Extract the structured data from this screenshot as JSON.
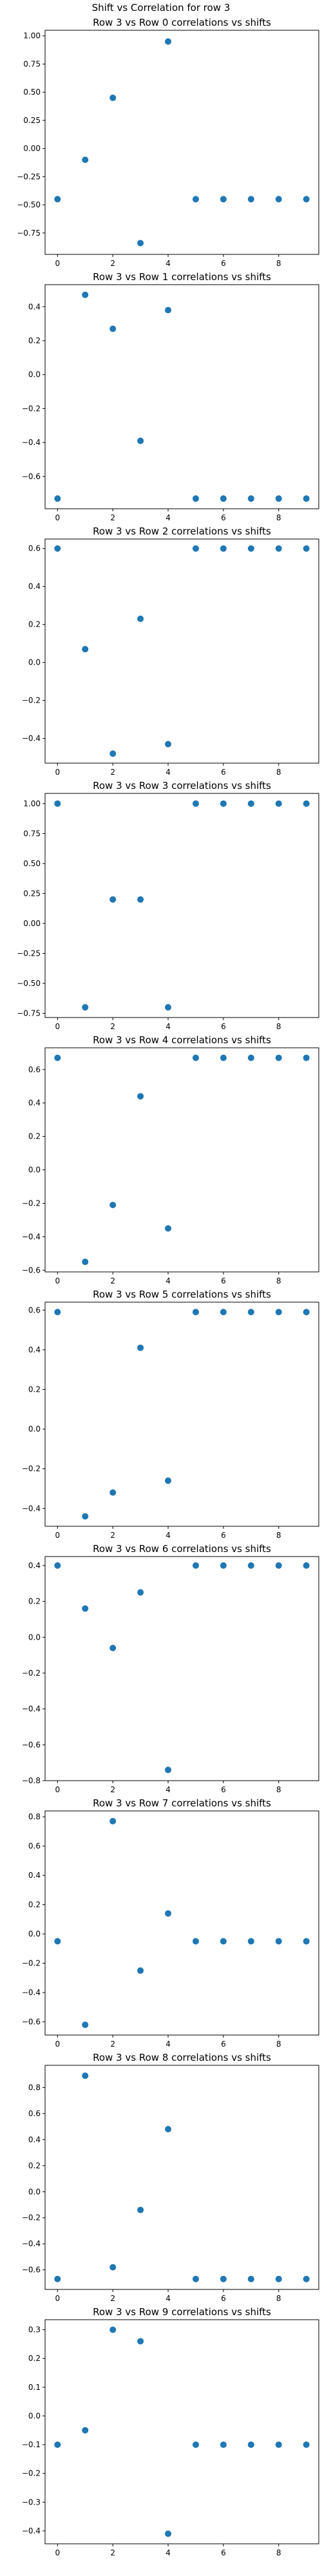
{
  "figure": {
    "suptitle": "Shift vs Correlation for row 3"
  },
  "colors": {
    "marker": "#1f77b4",
    "axis": "#000000",
    "text": "#000000"
  },
  "chart_data": [
    {
      "type": "scatter",
      "title": "Row 3 vs Row 0 correlations vs shifts",
      "x": [
        0,
        1,
        2,
        3,
        4,
        5,
        6,
        7,
        8,
        9
      ],
      "y": [
        -0.45,
        -0.1,
        0.45,
        -0.84,
        0.95,
        -0.45,
        -0.45,
        -0.45,
        -0.45,
        -0.45
      ],
      "xlim": [
        -0.45,
        9.45
      ],
      "ylim": [
        -0.94,
        1.05
      ],
      "xticks": [
        0,
        2,
        4,
        6,
        8
      ],
      "yticks": [
        -0.75,
        -0.5,
        -0.25,
        0.0,
        0.25,
        0.5,
        0.75,
        1.0
      ],
      "yticklabels": [
        "−0.75",
        "−0.50",
        "−0.25",
        "0.00",
        "0.25",
        "0.50",
        "0.75",
        "1.00"
      ]
    },
    {
      "type": "scatter",
      "title": "Row 3 vs Row 1 correlations vs shifts",
      "x": [
        0,
        1,
        2,
        3,
        4,
        5,
        6,
        7,
        8,
        9
      ],
      "y": [
        -0.73,
        0.47,
        0.27,
        -0.39,
        0.38,
        -0.73,
        -0.73,
        -0.73,
        -0.73,
        -0.73
      ],
      "xlim": [
        -0.45,
        9.45
      ],
      "ylim": [
        -0.79,
        0.53
      ],
      "xticks": [
        0,
        2,
        4,
        6,
        8
      ],
      "yticks": [
        -0.6,
        -0.4,
        -0.2,
        0.0,
        0.2,
        0.4
      ],
      "yticklabels": [
        "−0.6",
        "−0.4",
        "−0.2",
        "0.0",
        "0.2",
        "0.4"
      ]
    },
    {
      "type": "scatter",
      "title": "Row 3 vs Row 2 correlations vs shifts",
      "x": [
        0,
        1,
        2,
        3,
        4,
        5,
        6,
        7,
        8,
        9
      ],
      "y": [
        0.6,
        0.07,
        -0.48,
        0.23,
        -0.43,
        0.6,
        0.6,
        0.6,
        0.6,
        0.6
      ],
      "xlim": [
        -0.45,
        9.45
      ],
      "ylim": [
        -0.53,
        0.65
      ],
      "xticks": [
        0,
        2,
        4,
        6,
        8
      ],
      "yticks": [
        -0.4,
        -0.2,
        0.0,
        0.2,
        0.4,
        0.6
      ],
      "yticklabels": [
        "−0.4",
        "−0.2",
        "0.0",
        "0.2",
        "0.4",
        "0.6"
      ]
    },
    {
      "type": "scatter",
      "title": "Row 3 vs Row 3 correlations vs shifts",
      "x": [
        0,
        1,
        2,
        3,
        4,
        5,
        6,
        7,
        8,
        9
      ],
      "y": [
        1.0,
        -0.7,
        0.2,
        0.2,
        -0.7,
        1.0,
        1.0,
        1.0,
        1.0,
        1.0
      ],
      "xlim": [
        -0.45,
        9.45
      ],
      "ylim": [
        -0.785,
        1.085
      ],
      "xticks": [
        0,
        2,
        4,
        6,
        8
      ],
      "yticks": [
        -0.75,
        -0.5,
        -0.25,
        0.0,
        0.25,
        0.5,
        0.75,
        1.0
      ],
      "yticklabels": [
        "−0.75",
        "−0.50",
        "−0.25",
        "0.00",
        "0.25",
        "0.50",
        "0.75",
        "1.00"
      ]
    },
    {
      "type": "scatter",
      "title": "Row 3 vs Row 4 correlations vs shifts",
      "x": [
        0,
        1,
        2,
        3,
        4,
        5,
        6,
        7,
        8,
        9
      ],
      "y": [
        0.67,
        -0.55,
        -0.21,
        0.44,
        -0.35,
        0.67,
        0.67,
        0.67,
        0.67,
        0.67
      ],
      "xlim": [
        -0.45,
        9.45
      ],
      "ylim": [
        -0.61,
        0.73
      ],
      "xticks": [
        0,
        2,
        4,
        6,
        8
      ],
      "yticks": [
        -0.6,
        -0.4,
        -0.2,
        0.0,
        0.2,
        0.4,
        0.6
      ],
      "yticklabels": [
        "−0.6",
        "−0.4",
        "−0.2",
        "0.0",
        "0.2",
        "0.4",
        "0.6"
      ]
    },
    {
      "type": "scatter",
      "title": "Row 3 vs Row 5 correlations vs shifts",
      "x": [
        0,
        1,
        2,
        3,
        4,
        5,
        6,
        7,
        8,
        9
      ],
      "y": [
        0.59,
        -0.44,
        -0.32,
        0.41,
        -0.26,
        0.59,
        0.59,
        0.59,
        0.59,
        0.59
      ],
      "xlim": [
        -0.45,
        9.45
      ],
      "ylim": [
        -0.49,
        0.64
      ],
      "xticks": [
        0,
        2,
        4,
        6,
        8
      ],
      "yticks": [
        -0.4,
        -0.2,
        0.0,
        0.2,
        0.4,
        0.6
      ],
      "yticklabels": [
        "−0.4",
        "−0.2",
        "0.0",
        "0.2",
        "0.4",
        "0.6"
      ]
    },
    {
      "type": "scatter",
      "title": "Row 3 vs Row 6 correlations vs shifts",
      "x": [
        0,
        1,
        2,
        3,
        4,
        5,
        6,
        7,
        8,
        9
      ],
      "y": [
        0.4,
        0.16,
        -0.06,
        0.25,
        -0.74,
        0.4,
        0.4,
        0.4,
        0.4,
        0.4
      ],
      "xlim": [
        -0.45,
        9.45
      ],
      "ylim": [
        -0.8,
        0.45
      ],
      "xticks": [
        0,
        2,
        4,
        6,
        8
      ],
      "yticks": [
        -0.8,
        -0.6,
        -0.4,
        -0.2,
        0.0,
        0.2,
        0.4
      ],
      "yticklabels": [
        "−0.8",
        "−0.6",
        "−0.4",
        "−0.2",
        "0.0",
        "0.2",
        "0.4"
      ]
    },
    {
      "type": "scatter",
      "title": "Row 3 vs Row 7 correlations vs shifts",
      "x": [
        0,
        1,
        2,
        3,
        4,
        5,
        6,
        7,
        8,
        9
      ],
      "y": [
        -0.05,
        -0.62,
        0.77,
        -0.25,
        0.14,
        -0.05,
        -0.05,
        -0.05,
        -0.05,
        -0.05
      ],
      "xlim": [
        -0.45,
        9.45
      ],
      "ylim": [
        -0.69,
        0.84
      ],
      "xticks": [
        0,
        2,
        4,
        6,
        8
      ],
      "yticks": [
        -0.6,
        -0.4,
        -0.2,
        0.0,
        0.2,
        0.4,
        0.6,
        0.8
      ],
      "yticklabels": [
        "−0.6",
        "−0.4",
        "−0.2",
        "0.0",
        "0.2",
        "0.4",
        "0.6",
        "0.8"
      ]
    },
    {
      "type": "scatter",
      "title": "Row 3 vs Row 8 correlations vs shifts",
      "x": [
        0,
        1,
        2,
        3,
        4,
        5,
        6,
        7,
        8,
        9
      ],
      "y": [
        -0.67,
        0.89,
        -0.58,
        -0.14,
        0.48,
        -0.67,
        -0.67,
        -0.67,
        -0.67,
        -0.67
      ],
      "xlim": [
        -0.45,
        9.45
      ],
      "ylim": [
        -0.75,
        0.97
      ],
      "xticks": [
        0,
        2,
        4,
        6,
        8
      ],
      "yticks": [
        -0.6,
        -0.4,
        -0.2,
        0.0,
        0.2,
        0.4,
        0.6,
        0.8
      ],
      "yticklabels": [
        "−0.6",
        "−0.4",
        "−0.2",
        "0.0",
        "0.2",
        "0.4",
        "0.6",
        "0.8"
      ]
    },
    {
      "type": "scatter",
      "title": "Row 3 vs Row 9 correlations vs shifts",
      "x": [
        0,
        1,
        2,
        3,
        4,
        5,
        6,
        7,
        8,
        9
      ],
      "y": [
        -0.1,
        -0.05,
        0.3,
        0.26,
        -0.41,
        -0.1,
        -0.1,
        -0.1,
        -0.1,
        -0.1
      ],
      "xlim": [
        -0.45,
        9.45
      ],
      "ylim": [
        -0.445,
        0.335
      ],
      "xticks": [
        0,
        2,
        4,
        6,
        8
      ],
      "yticks": [
        -0.4,
        -0.3,
        -0.2,
        -0.1,
        0.0,
        0.1,
        0.2,
        0.3
      ],
      "yticklabels": [
        "−0.4",
        "−0.3",
        "−0.2",
        "−0.1",
        "0.0",
        "0.1",
        "0.2",
        "0.3"
      ]
    }
  ]
}
